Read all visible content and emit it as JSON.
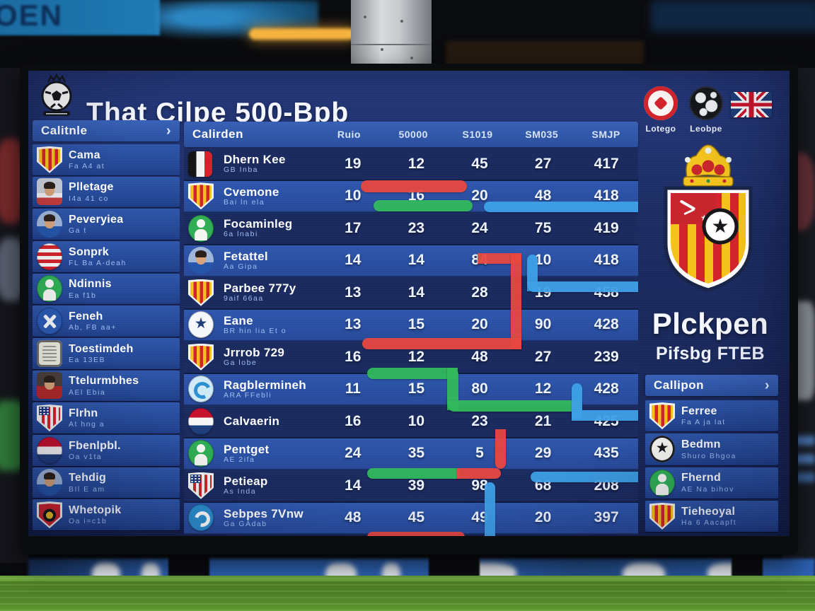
{
  "colors": {
    "red": "#e8463f",
    "green": "#31b95c",
    "blue": "#3da0e8",
    "yellow": "#f2c21d",
    "row_dark": "#1a2a5e",
    "row_light": "#2a51a4",
    "panel_header": "#2f58ac",
    "screen_bg": "#1b2a60",
    "sub_text": "#9fbcf0"
  },
  "background": {
    "banner_text": "OEN"
  },
  "header": {
    "title": "That Cilpe 500-Bpb"
  },
  "top_right_badges": [
    {
      "label": "Lotego",
      "icon": "red-crest"
    },
    {
      "label": "Leobpe",
      "icon": "globe"
    },
    {
      "label": "",
      "icon": "uk-flag"
    }
  ],
  "sidebar": {
    "header": "Calitnle",
    "items": [
      {
        "name": "Cama",
        "sub": "Fa A4 at",
        "icon": "crest-red-yellow"
      },
      {
        "name": "Plletage",
        "sub": "I4a 41 co",
        "icon": "photo-white"
      },
      {
        "name": "Peveryiea",
        "sub": "Ga t",
        "icon": "photo-blue-circle"
      },
      {
        "name": "Sonprk",
        "sub": "FL Ba A-deah",
        "icon": "circle-red-white-stripes"
      },
      {
        "name": "Ndinnis",
        "sub": "Ea f1b",
        "icon": "circle-green-figure"
      },
      {
        "name": "Feneh",
        "sub": "Ab, FB aa+",
        "icon": "circle-blue-hammers"
      },
      {
        "name": "Toestimdeh",
        "sub": "Ea 13EB",
        "icon": "crest-grey"
      },
      {
        "name": "Ttelurmbhes",
        "sub": "AEl Ebia",
        "icon": "photo-red"
      },
      {
        "name": "Flrhn",
        "sub": "At hng a",
        "icon": "shield-stars-stripes"
      },
      {
        "name": "Fbenlpbl.",
        "sub": "Oa v1ta",
        "icon": "circle-tricolor"
      },
      {
        "name": "Tehdig",
        "sub": "BIl E am",
        "icon": "photo-blue-circle"
      },
      {
        "name": "Whetopik",
        "sub": "Oa i=c1b",
        "icon": "crest-red-black"
      }
    ]
  },
  "table": {
    "header_label": "Calirden",
    "columns": [
      "Ruio",
      "50000",
      "S1019",
      "SM035",
      "SMJP"
    ],
    "rows": [
      {
        "name": "Dhern Kee",
        "sub": "GB Inba",
        "icon": "flag-black-white-red",
        "values": [
          19,
          12,
          45,
          27,
          417
        ]
      },
      {
        "name": "Cvemone",
        "sub": "Bai ln ela",
        "icon": "crest-red-yellow",
        "values": [
          10,
          16,
          20,
          48,
          418
        ]
      },
      {
        "name": "Focaminleg",
        "sub": "6a lnabi",
        "icon": "circle-green-figure",
        "values": [
          17,
          23,
          24,
          75,
          419
        ]
      },
      {
        "name": "Fetattel",
        "sub": "Aa Gipa",
        "icon": "photo-blue-circle",
        "values": [
          14,
          14,
          84,
          10,
          418
        ]
      },
      {
        "name": "Parbee 777y",
        "sub": "9aif 66aa",
        "icon": "crest-red-yellow",
        "values": [
          13,
          14,
          28,
          19,
          458
        ]
      },
      {
        "name": "Eane",
        "sub": "BR hin lia Et o",
        "icon": "circle-badge-navy",
        "values": [
          13,
          15,
          20,
          90,
          428
        ]
      },
      {
        "name": "Jrrrob 729",
        "sub": "Ga lobe",
        "icon": "crest-red-yellow",
        "values": [
          16,
          12,
          48,
          27,
          239
        ]
      },
      {
        "name": "Ragblermineh",
        "sub": "ARA FFebli",
        "icon": "circle-badge-lightblue",
        "values": [
          11,
          15,
          80,
          12,
          428
        ]
      },
      {
        "name": "Calvaerin",
        "sub": "",
        "icon": "circle-tricolor",
        "values": [
          16,
          10,
          23,
          21,
          425
        ]
      },
      {
        "name": "Pentget",
        "sub": "AE 2ifa",
        "icon": "circle-green-figure",
        "values": [
          24,
          35,
          5,
          29,
          435
        ]
      },
      {
        "name": "Petieap",
        "sub": "As Inda",
        "icon": "shield-stars-stripes",
        "values": [
          14,
          39,
          98,
          68,
          208
        ]
      },
      {
        "name": "Sebpes 7Vnw",
        "sub": "Ga GAdab",
        "icon": "circle-badge-cyan",
        "values": [
          48,
          45,
          49,
          20,
          397
        ]
      }
    ]
  },
  "right_panel": {
    "club_name": "Plckpen",
    "club_sub": "Pifsbg FTEB",
    "list_header": "Callipon",
    "items": [
      {
        "name": "Ferree",
        "sub": "Fa A ja lat",
        "icon": "crest-red-yellow"
      },
      {
        "name": "Bedmn",
        "sub": "Shuro Bhgoa",
        "icon": "circle-star-bw"
      },
      {
        "name": "Fhernd",
        "sub": "AE Na bihov",
        "icon": "circle-green-figure"
      },
      {
        "name": "Tieheoyal",
        "sub": "Ha 6 Aacapft",
        "icon": "crest-red-yellow"
      }
    ]
  }
}
